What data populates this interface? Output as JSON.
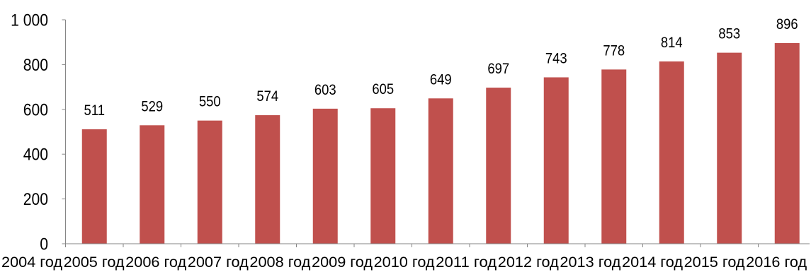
{
  "chart_data": {
    "type": "bar",
    "categories": [
      "2004 год",
      "2005 год",
      "2006 год",
      "2007 год",
      "2008 год",
      "2009 год",
      "2010 год",
      "2011 год",
      "2012 год",
      "2013 год",
      "2014 год",
      "2015 год",
      "2016 год"
    ],
    "values": [
      511,
      529,
      550,
      574,
      603,
      605,
      649,
      697,
      743,
      778,
      814,
      853,
      896
    ],
    "ylim": [
      0,
      1000
    ],
    "y_ticks": [
      0,
      200,
      400,
      600,
      800,
      1000
    ],
    "y_tick_labels": [
      "0",
      "200",
      "400",
      "600",
      "800",
      "1 000"
    ],
    "data_labels": true,
    "grid": false,
    "legend": false,
    "colors": {
      "bar": "#C0504D",
      "axis": "#868686",
      "text": "#000000"
    }
  }
}
